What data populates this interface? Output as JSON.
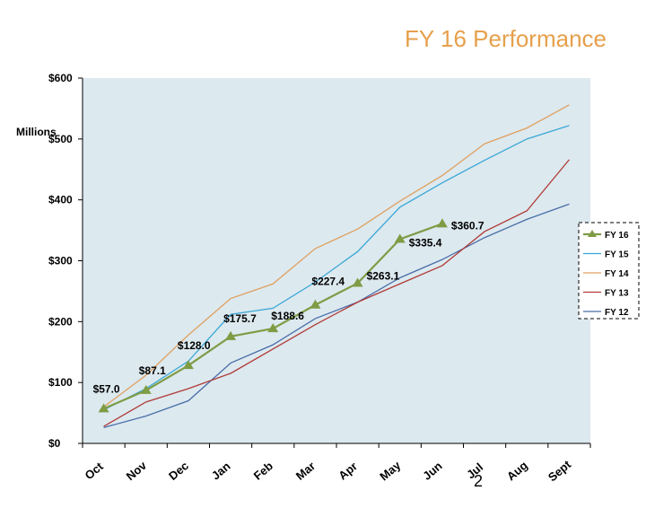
{
  "slide": {
    "title": "FY 16 Performance",
    "page_number": "2"
  },
  "chart_data": {
    "type": "line",
    "title": "",
    "ylabel": "Millions",
    "xlabel": "",
    "categories": [
      "Oct",
      "Nov",
      "Dec",
      "Jan",
      "Feb",
      "Mar",
      "Apr",
      "May",
      "Jun",
      "Jul",
      "Aug",
      "Sept"
    ],
    "ylim": [
      0,
      600
    ],
    "yticks": [
      0,
      100,
      200,
      300,
      400,
      500,
      600
    ],
    "ytick_labels": [
      "$0",
      "$100",
      "$200",
      "$300",
      "$400",
      "$500",
      "$600"
    ],
    "grid": false,
    "plot_background": "#dce9ef",
    "legend_position": "right",
    "series": [
      {
        "name": "FY 16",
        "color": "#7f9c45",
        "marker": "triangle",
        "values": [
          57.0,
          87.1,
          128.0,
          175.7,
          188.6,
          227.4,
          263.1,
          335.4,
          360.7,
          null,
          null,
          null
        ],
        "data_labels": [
          "$57.0",
          "$87.1",
          "$128.0",
          "$175.7",
          "$188.6",
          "$227.4",
          "$263.1",
          "$335.4",
          "$360.7"
        ]
      },
      {
        "name": "FY 15",
        "color": "#3aa7d6",
        "values": [
          55,
          90,
          135,
          212,
          222,
          265,
          315,
          388,
          428,
          465,
          500,
          522
        ]
      },
      {
        "name": "FY 14",
        "color": "#e0a060",
        "values": [
          60,
          112,
          178,
          238,
          262,
          320,
          352,
          398,
          440,
          492,
          518,
          556
        ]
      },
      {
        "name": "FY 13",
        "color": "#b03a36",
        "values": [
          28,
          68,
          90,
          115,
          155,
          195,
          232,
          262,
          292,
          348,
          382,
          466
        ]
      },
      {
        "name": "FY 12",
        "color": "#4a6ea8",
        "values": [
          26,
          45,
          70,
          132,
          162,
          205,
          232,
          272,
          302,
          338,
          368,
          393
        ]
      }
    ]
  }
}
